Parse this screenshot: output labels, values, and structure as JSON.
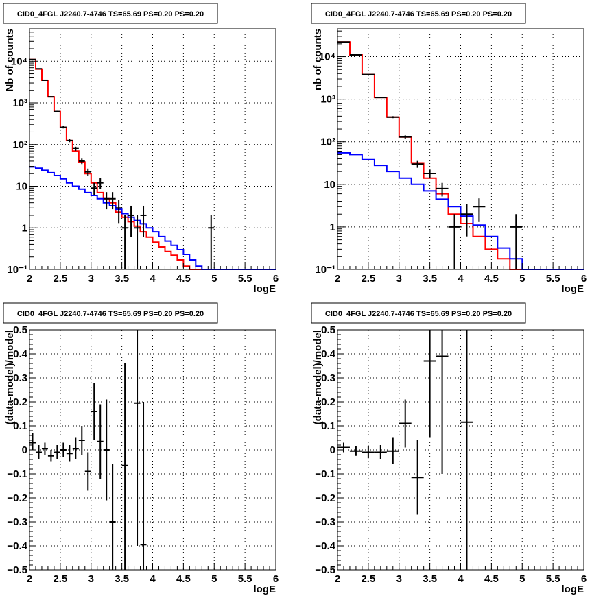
{
  "chart_data": [
    {
      "type": "histogram",
      "title": "CID0_4FGL J2240.7-4746 TS=65.69 PS=0.20 PS=0.20",
      "xlabel": "logE",
      "ylabel": "Nb of counts",
      "xlim": [
        2,
        6
      ],
      "ylim": [
        0.1,
        60000
      ],
      "yscale": "log",
      "grid": true,
      "xticks": [
        "2",
        "2.5",
        "3",
        "3.5",
        "4",
        "4.5",
        "5",
        "5.5",
        "6"
      ],
      "yticks": [
        {
          "value": 0.1,
          "label": "10⁻¹"
        },
        {
          "value": 1,
          "label": "1"
        },
        {
          "value": 10,
          "label": "10"
        },
        {
          "value": 100,
          "label": "10²"
        },
        {
          "value": 1000,
          "label": "10³"
        },
        {
          "value": 10000,
          "label": "10⁴"
        }
      ],
      "series": [
        {
          "type": "step",
          "color": "#ff0000",
          "edges": [
            2.0,
            2.1,
            2.2,
            2.3,
            2.4,
            2.5,
            2.6,
            2.7,
            2.8,
            2.9,
            3.0,
            3.1,
            3.2,
            3.3,
            3.4,
            3.5,
            3.6,
            3.7,
            3.8,
            3.9,
            4.0,
            4.1,
            4.2,
            4.3,
            4.4,
            4.5,
            4.6,
            4.7,
            4.8,
            4.9,
            5.0,
            5.1,
            5.2,
            5.3,
            5.4,
            5.5,
            5.6,
            5.7,
            5.8,
            5.9,
            6.0
          ],
          "values": [
            11000,
            6500,
            3500,
            1400,
            620,
            260,
            125,
            70,
            38,
            20,
            12,
            7,
            5,
            4,
            2.4,
            1.8,
            1.4,
            1.1,
            0.8,
            0.6,
            0.45,
            0.35,
            0.27,
            0.22,
            0.17,
            0.12,
            0.1,
            0.1,
            0.1,
            0.1,
            0.1,
            0.1,
            0.1,
            0.1,
            0.1,
            0.1,
            0.1,
            0.1,
            0.1,
            0.1
          ]
        },
        {
          "type": "step",
          "color": "#0000ff",
          "edges": [
            2.0,
            2.1,
            2.2,
            2.3,
            2.4,
            2.5,
            2.6,
            2.7,
            2.8,
            2.9,
            3.0,
            3.1,
            3.2,
            3.3,
            3.4,
            3.5,
            3.6,
            3.7,
            3.8,
            3.9,
            4.0,
            4.1,
            4.2,
            4.3,
            4.4,
            4.5,
            4.6,
            4.7,
            4.8,
            4.9,
            5.0,
            5.1,
            5.2,
            5.3,
            5.4,
            5.5,
            5.6,
            5.7,
            5.8,
            5.9,
            6.0
          ],
          "values": [
            29,
            27,
            24,
            21,
            18,
            15,
            12,
            10,
            8.5,
            7,
            6,
            5,
            4,
            3.4,
            2.8,
            2.2,
            1.8,
            1.5,
            1.25,
            1.0,
            0.8,
            0.62,
            0.48,
            0.38,
            0.3,
            0.23,
            0.17,
            0.12,
            0.1,
            0.1,
            0.1,
            0.1,
            0.1,
            0.1,
            0.1,
            0.1,
            0.1,
            0.1,
            0.1,
            0.1
          ]
        },
        {
          "type": "errorbar",
          "color": "#000000",
          "points": [
            {
              "x": 2.05,
              "y": 11000,
              "lo": 10900,
              "hi": 11100
            },
            {
              "x": 2.15,
              "y": 6600,
              "lo": 6500,
              "hi": 6700
            },
            {
              "x": 2.25,
              "y": 3500,
              "lo": 3440,
              "hi": 3560
            },
            {
              "x": 2.35,
              "y": 1400,
              "lo": 1360,
              "hi": 1440
            },
            {
              "x": 2.45,
              "y": 620,
              "lo": 595,
              "hi": 645
            },
            {
              "x": 2.55,
              "y": 260,
              "lo": 244,
              "hi": 276
            },
            {
              "x": 2.65,
              "y": 125,
              "lo": 114,
              "hi": 136
            },
            {
              "x": 2.75,
              "y": 80,
              "lo": 71,
              "hi": 89
            },
            {
              "x": 2.85,
              "y": 40,
              "lo": 34,
              "hi": 46
            },
            {
              "x": 2.95,
              "y": 22,
              "lo": 17.5,
              "hi": 26.5
            },
            {
              "x": 3.05,
              "y": 9,
              "lo": 6,
              "hi": 12
            },
            {
              "x": 3.15,
              "y": 12,
              "lo": 8.5,
              "hi": 15.5
            },
            {
              "x": 3.25,
              "y": 5,
              "lo": 2.8,
              "hi": 7.2
            },
            {
              "x": 3.35,
              "y": 5,
              "lo": 2.8,
              "hi": 7.2
            },
            {
              "x": 3.45,
              "y": 3,
              "lo": 1.3,
              "hi": 4.7
            },
            {
              "x": 3.55,
              "y": 1,
              "lo": 0.1,
              "hi": 2
            },
            {
              "x": 3.65,
              "y": 2,
              "lo": 0.6,
              "hi": 3.4
            },
            {
              "x": 3.75,
              "y": 1,
              "lo": 0.1,
              "hi": 2
            },
            {
              "x": 3.85,
              "y": 2,
              "lo": 0.6,
              "hi": 3.4
            },
            {
              "x": 4.95,
              "y": 1,
              "lo": 0.1,
              "hi": 2
            }
          ],
          "xerr": 0.05
        }
      ]
    },
    {
      "type": "histogram",
      "title": "CID0_4FGL J2240.7-4746 TS=65.69 PS=0.20 PS=0.20",
      "xlabel": "logE",
      "ylabel": "nb of counts",
      "xlim": [
        2,
        6
      ],
      "ylim": [
        0.1,
        45000
      ],
      "yscale": "log",
      "grid": true,
      "xticks": [
        "2",
        "2.5",
        "3",
        "3.5",
        "4",
        "4.5",
        "5",
        "5.5",
        "6"
      ],
      "yticks": [
        {
          "value": 0.1,
          "label": "10⁻¹"
        },
        {
          "value": 1,
          "label": "1"
        },
        {
          "value": 10,
          "label": "10"
        },
        {
          "value": 100,
          "label": "10²"
        },
        {
          "value": 1000,
          "label": "10³"
        },
        {
          "value": 10000,
          "label": "10⁴"
        }
      ],
      "series": [
        {
          "type": "step",
          "color": "#ff0000",
          "edges": [
            2.0,
            2.2,
            2.4,
            2.6,
            2.8,
            3.0,
            3.2,
            3.4,
            3.6,
            3.8,
            4.0,
            4.2,
            4.4,
            4.6,
            4.8,
            5.0,
            5.2,
            5.4,
            5.6,
            5.8,
            6.0
          ],
          "values": [
            22000,
            11000,
            3800,
            1100,
            380,
            130,
            32,
            14,
            6,
            2,
            1.2,
            0.6,
            0.3,
            0.18,
            0.1,
            0.1,
            0.1,
            0.1,
            0.1,
            0.1
          ]
        },
        {
          "type": "step",
          "color": "#0000ff",
          "edges": [
            2.0,
            2.2,
            2.4,
            2.6,
            2.8,
            3.0,
            3.2,
            3.4,
            3.6,
            3.8,
            4.0,
            4.2,
            4.4,
            4.6,
            4.8,
            5.0,
            5.2,
            5.4,
            5.6,
            5.8,
            6.0
          ],
          "values": [
            55,
            50,
            38,
            28,
            20,
            14,
            10,
            7,
            4.5,
            3,
            1.8,
            1.1,
            0.6,
            0.32,
            0.18,
            0.1,
            0.1,
            0.1,
            0.1,
            0.1
          ]
        },
        {
          "type": "errorbar",
          "color": "#000000",
          "points": [
            {
              "x": 2.1,
              "y": 22000,
              "lo": 21850,
              "hi": 22150
            },
            {
              "x": 2.3,
              "y": 11000,
              "lo": 10890,
              "hi": 11110
            },
            {
              "x": 2.5,
              "y": 3800,
              "lo": 3740,
              "hi": 3860
            },
            {
              "x": 2.7,
              "y": 1100,
              "lo": 1070,
              "hi": 1130
            },
            {
              "x": 2.9,
              "y": 380,
              "lo": 360,
              "hi": 400
            },
            {
              "x": 3.1,
              "y": 130,
              "lo": 118,
              "hi": 142
            },
            {
              "x": 3.3,
              "y": 30,
              "lo": 24.5,
              "hi": 35.5
            },
            {
              "x": 3.5,
              "y": 18,
              "lo": 13.8,
              "hi": 22.2
            },
            {
              "x": 3.7,
              "y": 8,
              "lo": 5.2,
              "hi": 10.8
            },
            {
              "x": 3.9,
              "y": 1,
              "lo": 0.1,
              "hi": 2
            },
            {
              "x": 4.1,
              "y": 2,
              "lo": 0.6,
              "hi": 3.4
            },
            {
              "x": 4.3,
              "y": 3,
              "lo": 1.3,
              "hi": 4.7
            },
            {
              "x": 4.9,
              "y": 1,
              "lo": 0.1,
              "hi": 2
            }
          ],
          "xerr": 0.1
        }
      ]
    },
    {
      "type": "scatter",
      "title": "CID0_4FGL J2240.7-4746 TS=65.69 PS=0.20 PS=0.20",
      "xlabel": "logE",
      "ylabel": "(data-model)/model",
      "xlim": [
        2,
        6
      ],
      "ylim": [
        -0.5,
        0.5
      ],
      "yscale": "linear",
      "grid": true,
      "xticks": [
        "2",
        "2.5",
        "3",
        "3.5",
        "4",
        "4.5",
        "5",
        "5.5",
        "6"
      ],
      "yticks": [
        {
          "value": -0.5,
          "label": "−0.5"
        },
        {
          "value": -0.4,
          "label": "−0.4"
        },
        {
          "value": -0.3,
          "label": "−0.3"
        },
        {
          "value": -0.2,
          "label": "−0.2"
        },
        {
          "value": -0.1,
          "label": "−0.1"
        },
        {
          "value": 0,
          "label": "0"
        },
        {
          "value": 0.1,
          "label": "0.1"
        },
        {
          "value": 0.2,
          "label": "0.2"
        },
        {
          "value": 0.3,
          "label": "0.3"
        },
        {
          "value": 0.4,
          "label": "0.4"
        },
        {
          "value": 0.5,
          "label": "0.5"
        }
      ],
      "series": [
        {
          "type": "errorbar",
          "color": "#000000",
          "points": [
            {
              "x": 2.05,
              "y": 0.03,
              "lo": 0.0,
              "hi": 0.07
            },
            {
              "x": 2.15,
              "y": -0.01,
              "lo": -0.04,
              "hi": 0.02
            },
            {
              "x": 2.25,
              "y": 0.005,
              "lo": -0.02,
              "hi": 0.03
            },
            {
              "x": 2.35,
              "y": -0.025,
              "lo": -0.05,
              "hi": 0.0
            },
            {
              "x": 2.45,
              "y": -0.01,
              "lo": -0.04,
              "hi": 0.02
            },
            {
              "x": 2.55,
              "y": 0.0,
              "lo": -0.03,
              "hi": 0.03
            },
            {
              "x": 2.65,
              "y": -0.015,
              "lo": -0.05,
              "hi": 0.02
            },
            {
              "x": 2.75,
              "y": 0.005,
              "lo": -0.04,
              "hi": 0.05
            },
            {
              "x": 2.85,
              "y": 0.04,
              "lo": -0.02,
              "hi": 0.1
            },
            {
              "x": 2.95,
              "y": -0.09,
              "lo": -0.17,
              "hi": -0.01
            },
            {
              "x": 3.05,
              "y": 0.16,
              "lo": 0.04,
              "hi": 0.28
            },
            {
              "x": 3.15,
              "y": 0.035,
              "lo": -0.12,
              "hi": 0.19
            },
            {
              "x": 3.25,
              "y": 0.0,
              "lo": -0.21,
              "hi": 0.21
            },
            {
              "x": 3.35,
              "y": -0.3,
              "lo": -0.5,
              "hi": -0.06
            },
            {
              "x": 3.55,
              "y": -0.065,
              "lo": -0.5,
              "hi": 0.36
            },
            {
              "x": 3.75,
              "y": 0.195,
              "lo": -0.4,
              "hi": 0.5
            },
            {
              "x": 3.85,
              "y": -0.395,
              "lo": -0.5,
              "hi": 0.2
            }
          ],
          "xerr": 0.05
        }
      ]
    },
    {
      "type": "scatter",
      "title": "CID0_4FGL J2240.7-4746 TS=65.69 PS=0.20 PS=0.20",
      "xlabel": "logE",
      "ylabel": "(data-model)/model",
      "xlim": [
        2,
        6
      ],
      "ylim": [
        -0.5,
        0.5
      ],
      "yscale": "linear",
      "grid": true,
      "xticks": [
        "2",
        "2.5",
        "3",
        "3.5",
        "4",
        "4.5",
        "5",
        "5.5",
        "6"
      ],
      "yticks": [
        {
          "value": -0.5,
          "label": "−0.5"
        },
        {
          "value": -0.4,
          "label": "−0.4"
        },
        {
          "value": -0.3,
          "label": "−0.3"
        },
        {
          "value": -0.2,
          "label": "−0.2"
        },
        {
          "value": -0.1,
          "label": "−0.1"
        },
        {
          "value": 0,
          "label": "0"
        },
        {
          "value": 0.1,
          "label": "0.1"
        },
        {
          "value": 0.2,
          "label": "0.2"
        },
        {
          "value": 0.3,
          "label": "0.3"
        },
        {
          "value": 0.4,
          "label": "0.4"
        },
        {
          "value": 0.5,
          "label": "0.5"
        }
      ],
      "series": [
        {
          "type": "errorbar",
          "color": "#000000",
          "points": [
            {
              "x": 2.1,
              "y": 0.01,
              "lo": -0.01,
              "hi": 0.03
            },
            {
              "x": 2.3,
              "y": -0.005,
              "lo": -0.025,
              "hi": 0.015
            },
            {
              "x": 2.5,
              "y": -0.01,
              "lo": -0.035,
              "hi": 0.015
            },
            {
              "x": 2.7,
              "y": -0.01,
              "lo": -0.04,
              "hi": 0.02
            },
            {
              "x": 2.9,
              "y": -0.005,
              "lo": -0.06,
              "hi": 0.05
            },
            {
              "x": 3.1,
              "y": 0.11,
              "lo": 0.01,
              "hi": 0.21
            },
            {
              "x": 3.3,
              "y": -0.115,
              "lo": -0.27,
              "hi": 0.04
            },
            {
              "x": 3.5,
              "y": 0.37,
              "lo": 0.05,
              "hi": 0.5
            },
            {
              "x": 3.7,
              "y": 0.39,
              "lo": -0.1,
              "hi": 0.5
            },
            {
              "x": 4.1,
              "y": 0.115,
              "lo": -0.5,
              "hi": 0.5
            }
          ],
          "xerr": 0.1
        }
      ]
    }
  ]
}
